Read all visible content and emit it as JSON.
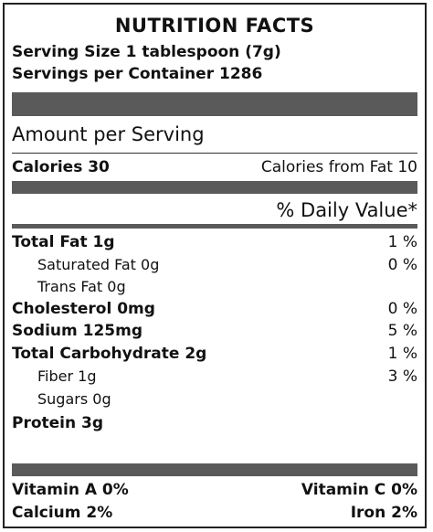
{
  "title": "NUTRITION FACTS",
  "serving_size": "Serving Size  1 tablespoon (7g)",
  "servings_per_container": "Servings per Container  1286",
  "amount_per_serving": "Amount per Serving",
  "calories": "Calories  30",
  "calories_from_fat": "Calories from Fat  10",
  "daily_value_header": "% Daily Value*",
  "nutrients": {
    "total_fat": {
      "label": "Total Fat  1g",
      "dv": "1 %"
    },
    "saturated_fat": {
      "label": "Saturated Fat  0g",
      "dv": "0 %"
    },
    "trans_fat": {
      "label": "Trans Fat  0g"
    },
    "cholesterol": {
      "label": "Cholesterol  0mg",
      "dv": "0 %"
    },
    "sodium": {
      "label": "Sodium  125mg",
      "dv": "5 %"
    },
    "total_carb": {
      "label": "Total Carbohydrate  2g",
      "dv": "1 %"
    },
    "fiber": {
      "label": "Fiber  1g",
      "dv": "3 %"
    },
    "sugars": {
      "label": "Sugars  0g"
    },
    "protein": {
      "label": "Protein  3g"
    }
  },
  "vitamins": {
    "vitamin_a": "Vitamin A  0%",
    "vitamin_c": "Vitamin C  0%",
    "calcium": "Calcium  2%",
    "iron": "Iron  2%"
  },
  "colors": {
    "bar": "#5a5a5a",
    "border": "#222222"
  }
}
